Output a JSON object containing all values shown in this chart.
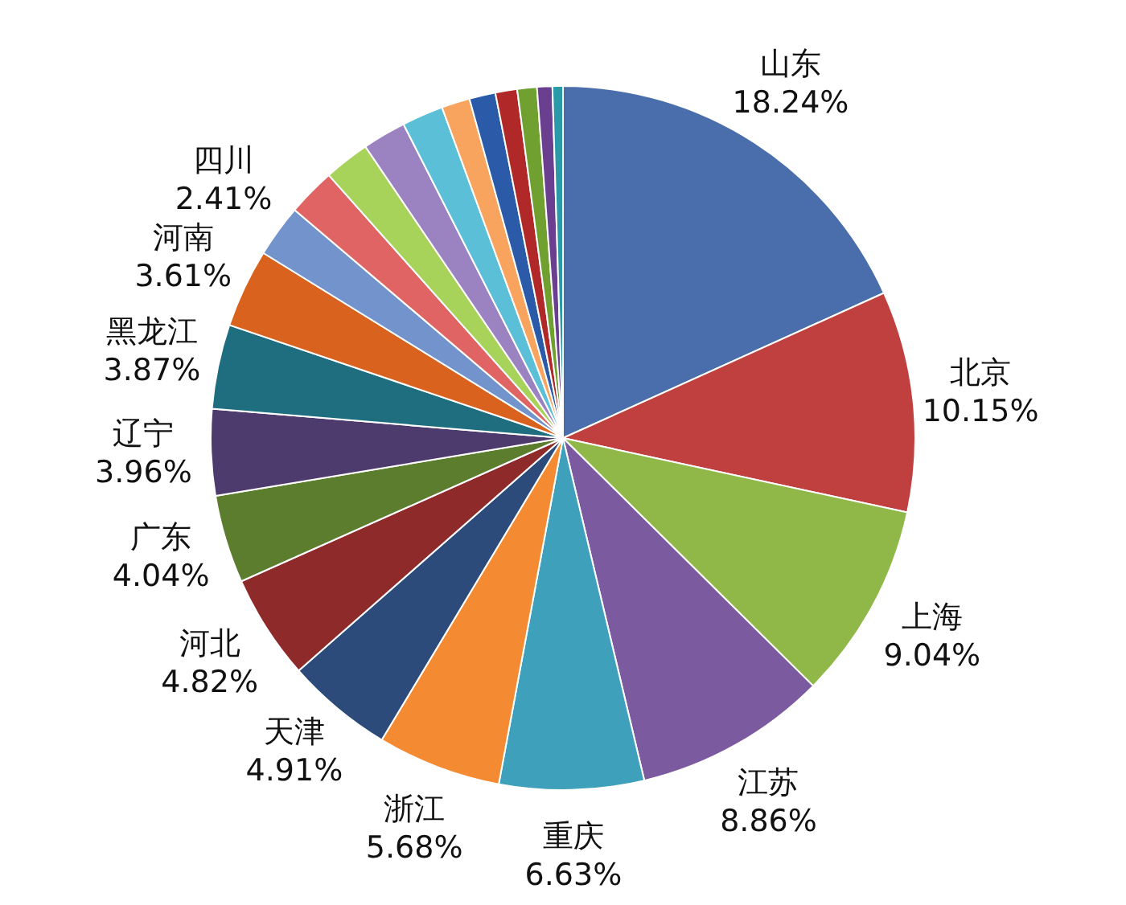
{
  "chart_data": {
    "type": "pie",
    "categories": [
      "山东",
      "北京",
      "上海",
      "江苏",
      "重庆",
      "浙江",
      "天津",
      "河北",
      "广东",
      "辽宁",
      "黑龙江",
      "河南",
      "四川",
      null,
      null,
      null,
      null,
      null,
      null,
      null,
      null,
      null,
      null
    ],
    "values": [
      18.24,
      10.15,
      9.04,
      8.86,
      6.63,
      5.68,
      4.91,
      4.82,
      4.04,
      3.96,
      3.87,
      3.61,
      2.41,
      2.2,
      2.1,
      2.0,
      1.9,
      1.3,
      1.2,
      1.0,
      0.9,
      0.7,
      0.48
    ],
    "value_labels": [
      "18.24%",
      "10.15%",
      "9.04%",
      "8.86%",
      "6.63%",
      "5.68%",
      "4.91%",
      "4.82%",
      "4.04%",
      "3.96%",
      "3.87%",
      "3.61%",
      "2.41%",
      null,
      null,
      null,
      null,
      null,
      null,
      null,
      null,
      null,
      null
    ],
    "colors": [
      "#4a6eab",
      "#c0403f",
      "#8fb849",
      "#7c5aa0",
      "#3fa0bb",
      "#f48a32",
      "#2c4b7a",
      "#8e2a2a",
      "#5c7d2e",
      "#4e3b6e",
      "#1e6e80",
      "#d9621f",
      "#7393cc",
      "#e06464",
      "#a8d35a",
      "#9b82c0",
      "#5cbfd8",
      "#f8a45e",
      "#2a5aa8",
      "#b02828",
      "#70a030",
      "#6a3f90",
      "#2a9aa8"
    ],
    "legend": false
  }
}
